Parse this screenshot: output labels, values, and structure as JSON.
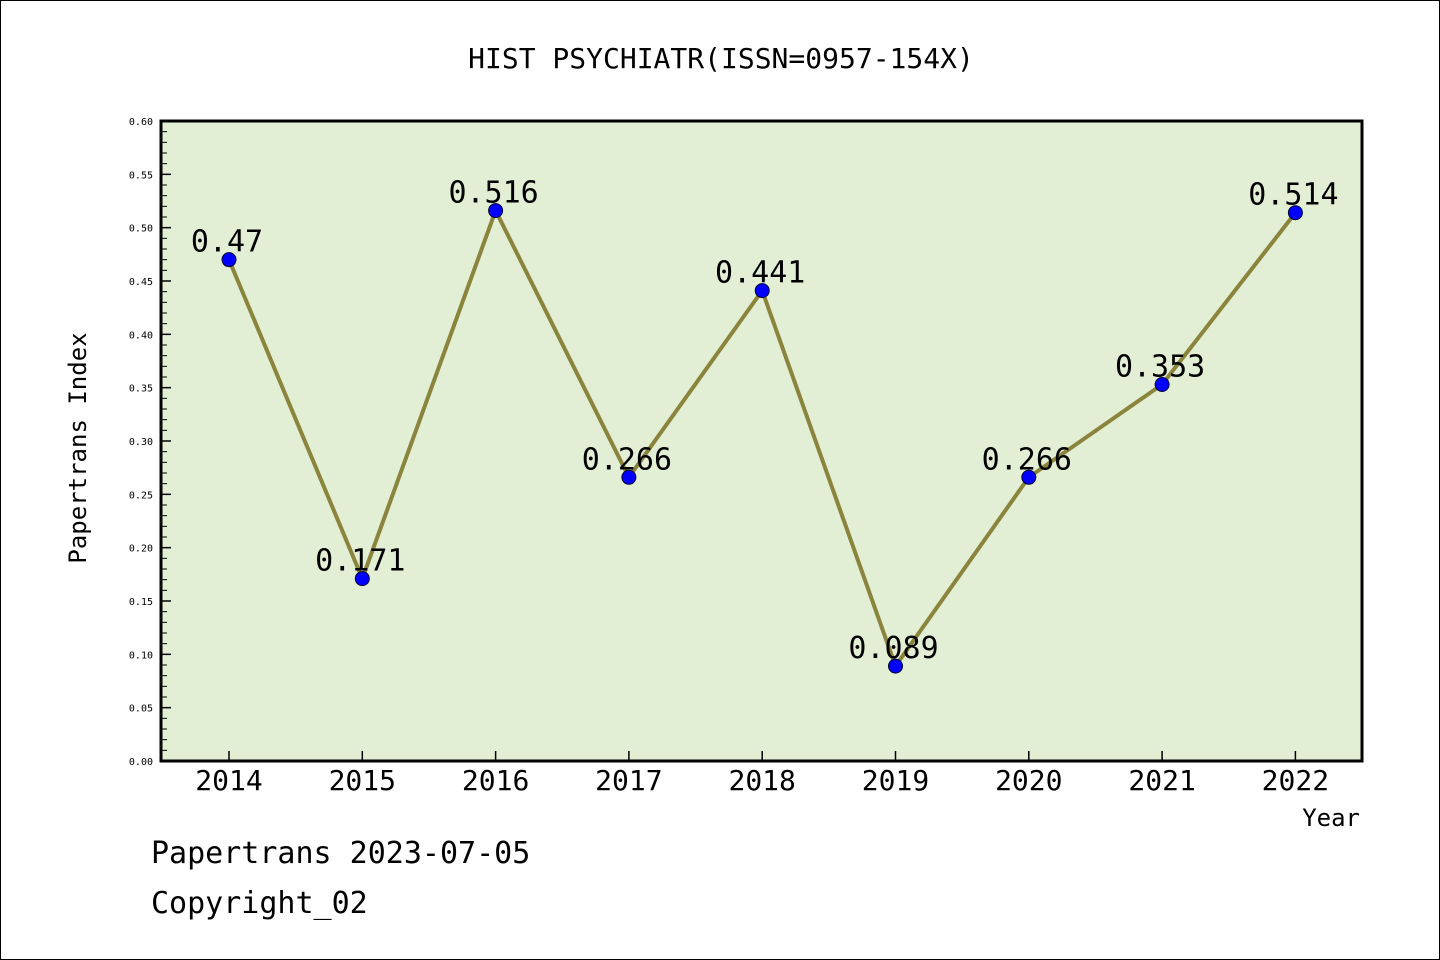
{
  "chart_data": {
    "type": "line",
    "title": "HIST PSYCHIATR(ISSN=0957-154X)",
    "xlabel": "Year",
    "ylabel": "Papertrans Index",
    "categories": [
      "2014",
      "2015",
      "2016",
      "2017",
      "2018",
      "2019",
      "2020",
      "2021",
      "2022"
    ],
    "series": [
      {
        "values": [
          0.47,
          0.171,
          0.516,
          0.266,
          0.441,
          0.089,
          0.266,
          0.353,
          0.514
        ]
      }
    ],
    "data_labels": [
      "0.47",
      "0.171",
      "0.516",
      "0.266",
      "0.441",
      "0.089",
      "0.266",
      "0.353",
      "0.514"
    ],
    "ylim": [
      0,
      0.6
    ],
    "yticks": [
      "0.00",
      "0.05",
      "0.10",
      "0.15",
      "0.20",
      "0.25",
      "0.30",
      "0.35",
      "0.40",
      "0.45",
      "0.50",
      "0.55",
      "0.60"
    ],
    "grid": false,
    "legend": "none",
    "colors": {
      "plot_background": "#e2efd5",
      "line": "#8b843c",
      "marker": "#0000ff"
    }
  },
  "footer": {
    "line1": "Papertrans 2023-07-05",
    "line2": "Copyright_02"
  }
}
